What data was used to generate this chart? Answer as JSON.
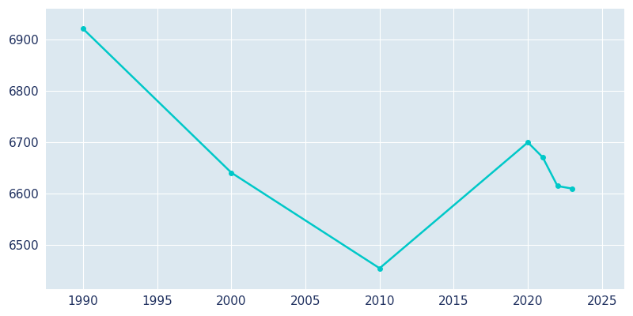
{
  "years": [
    1990,
    2000,
    2010,
    2020,
    2021,
    2022,
    2023
  ],
  "population": [
    6921,
    6641,
    6455,
    6700,
    6671,
    6615,
    6610
  ],
  "line_color": "#00c8c8",
  "marker": "o",
  "marker_size": 4,
  "line_width": 1.8,
  "fig_bg_color": "#ffffff",
  "plot_bg_color": "#dce8f0",
  "grid_color": "#ffffff",
  "tick_color": "#1e2f5e",
  "xlabel": "",
  "ylabel": "",
  "xlim": [
    1987.5,
    2026.5
  ],
  "ylim": [
    6415,
    6960
  ],
  "xticks": [
    1990,
    1995,
    2000,
    2005,
    2010,
    2015,
    2020,
    2025
  ],
  "yticks": [
    6500,
    6600,
    6700,
    6800,
    6900
  ],
  "figsize": [
    8.0,
    4.0
  ],
  "dpi": 100
}
